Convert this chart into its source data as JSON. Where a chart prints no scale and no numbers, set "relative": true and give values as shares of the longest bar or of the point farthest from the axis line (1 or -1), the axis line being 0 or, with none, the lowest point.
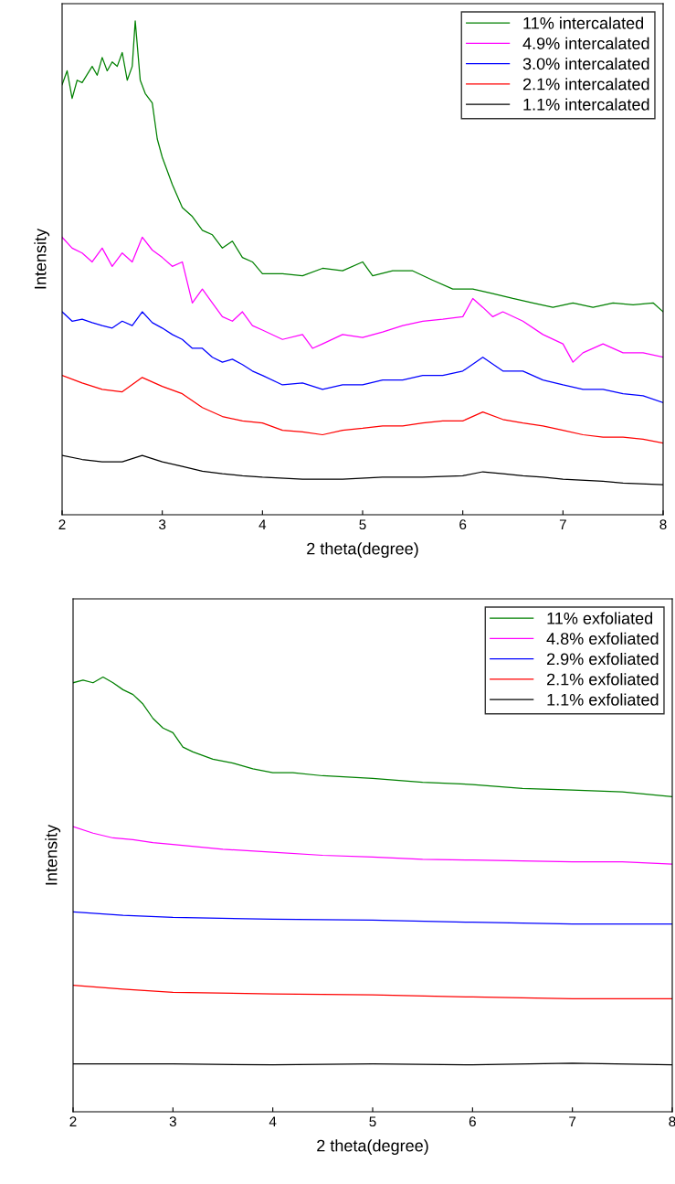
{
  "chart_data": [
    {
      "type": "line",
      "xlabel": "2 theta(degree)",
      "ylabel": "Intensity",
      "relative": true,
      "xlim": [
        2,
        8
      ],
      "xticks": [
        2,
        3,
        4,
        5,
        6,
        7,
        8
      ],
      "legend": "top right",
      "grid": false,
      "tick_labels": "x",
      "series": [
        {
          "name": "11% intercalated",
          "color": "#008000",
          "x": [
            2.0,
            2.05,
            2.1,
            2.15,
            2.2,
            2.3,
            2.35,
            2.4,
            2.45,
            2.5,
            2.55,
            2.6,
            2.65,
            2.7,
            2.73,
            2.78,
            2.83,
            2.9,
            2.95,
            3.0,
            3.1,
            3.2,
            3.3,
            3.4,
            3.5,
            3.6,
            3.7,
            3.8,
            3.9,
            4.0,
            4.2,
            4.4,
            4.6,
            4.8,
            5.0,
            5.1,
            5.3,
            5.5,
            5.7,
            5.9,
            6.1,
            6.3,
            6.5,
            6.7,
            6.9,
            7.1,
            7.3,
            7.5,
            7.7,
            7.9,
            8.0
          ],
          "values": [
            0.871,
            0.899,
            0.843,
            0.88,
            0.875,
            0.908,
            0.89,
            0.926,
            0.899,
            0.917,
            0.908,
            0.936,
            0.88,
            0.908,
            1.0,
            0.88,
            0.853,
            0.834,
            0.761,
            0.724,
            0.669,
            0.622,
            0.604,
            0.576,
            0.567,
            0.54,
            0.554,
            0.521,
            0.512,
            0.488,
            0.488,
            0.484,
            0.499,
            0.494,
            0.512,
            0.484,
            0.494,
            0.494,
            0.475,
            0.457,
            0.457,
            0.448,
            0.438,
            0.429,
            0.42,
            0.429,
            0.42,
            0.429,
            0.425,
            0.429,
            0.411
          ]
        },
        {
          "name": "4.9% intercalated",
          "color": "#ff00ff",
          "x": [
            2.0,
            2.1,
            2.2,
            2.3,
            2.4,
            2.5,
            2.6,
            2.7,
            2.8,
            2.9,
            3.0,
            3.1,
            3.2,
            3.3,
            3.4,
            3.5,
            3.6,
            3.7,
            3.8,
            3.9,
            4.0,
            4.2,
            4.4,
            4.5,
            4.6,
            4.8,
            5.0,
            5.2,
            5.4,
            5.6,
            5.8,
            6.0,
            6.1,
            6.2,
            6.3,
            6.4,
            6.6,
            6.8,
            7.0,
            7.1,
            7.2,
            7.4,
            7.6,
            7.8,
            8.0
          ],
          "values": [
            0.562,
            0.54,
            0.53,
            0.512,
            0.54,
            0.503,
            0.53,
            0.512,
            0.562,
            0.536,
            0.521,
            0.503,
            0.512,
            0.429,
            0.457,
            0.429,
            0.401,
            0.392,
            0.411,
            0.383,
            0.374,
            0.355,
            0.365,
            0.337,
            0.346,
            0.365,
            0.359,
            0.37,
            0.383,
            0.392,
            0.396,
            0.401,
            0.438,
            0.42,
            0.401,
            0.411,
            0.392,
            0.365,
            0.346,
            0.309,
            0.328,
            0.346,
            0.328,
            0.328,
            0.319
          ]
        },
        {
          "name": "3.0% intercalated",
          "color": "#0000ff",
          "x": [
            2.0,
            2.1,
            2.2,
            2.3,
            2.4,
            2.5,
            2.6,
            2.7,
            2.8,
            2.9,
            3.0,
            3.1,
            3.2,
            3.3,
            3.4,
            3.5,
            3.6,
            3.7,
            3.8,
            3.9,
            4.0,
            4.2,
            4.4,
            4.6,
            4.8,
            5.0,
            5.2,
            5.4,
            5.6,
            5.8,
            6.0,
            6.2,
            6.4,
            6.6,
            6.8,
            7.0,
            7.2,
            7.4,
            7.6,
            7.8,
            8.0
          ],
          "values": [
            0.411,
            0.392,
            0.396,
            0.389,
            0.383,
            0.378,
            0.392,
            0.383,
            0.411,
            0.389,
            0.378,
            0.365,
            0.355,
            0.337,
            0.337,
            0.319,
            0.309,
            0.315,
            0.304,
            0.291,
            0.282,
            0.263,
            0.267,
            0.254,
            0.263,
            0.263,
            0.273,
            0.273,
            0.282,
            0.282,
            0.291,
            0.319,
            0.291,
            0.291,
            0.273,
            0.263,
            0.254,
            0.254,
            0.245,
            0.241,
            0.227
          ]
        },
        {
          "name": "2.1% intercalated",
          "color": "#ff0000",
          "x": [
            2.0,
            2.2,
            2.4,
            2.6,
            2.8,
            3.0,
            3.2,
            3.4,
            3.6,
            3.8,
            4.0,
            4.2,
            4.4,
            4.6,
            4.8,
            5.0,
            5.2,
            5.4,
            5.6,
            5.8,
            6.0,
            6.2,
            6.4,
            6.6,
            6.8,
            7.0,
            7.2,
            7.4,
            7.6,
            7.8,
            8.0
          ],
          "values": [
            0.282,
            0.267,
            0.254,
            0.249,
            0.278,
            0.26,
            0.245,
            0.217,
            0.199,
            0.19,
            0.186,
            0.171,
            0.168,
            0.162,
            0.171,
            0.175,
            0.18,
            0.18,
            0.186,
            0.19,
            0.19,
            0.208,
            0.193,
            0.186,
            0.18,
            0.171,
            0.162,
            0.157,
            0.157,
            0.153,
            0.145
          ]
        },
        {
          "name": "1.1% intercalated",
          "color": "#000000",
          "x": [
            2.0,
            2.2,
            2.4,
            2.6,
            2.8,
            3.0,
            3.2,
            3.4,
            3.6,
            3.8,
            4.0,
            4.4,
            4.8,
            5.2,
            5.6,
            6.0,
            6.2,
            6.4,
            6.6,
            6.8,
            7.0,
            7.4,
            7.6,
            8.0
          ],
          "values": [
            0.12,
            0.112,
            0.107,
            0.107,
            0.12,
            0.107,
            0.098,
            0.088,
            0.083,
            0.079,
            0.076,
            0.072,
            0.072,
            0.076,
            0.076,
            0.079,
            0.087,
            0.083,
            0.079,
            0.076,
            0.072,
            0.068,
            0.064,
            0.061
          ]
        }
      ]
    },
    {
      "type": "line",
      "xlabel": "2 theta(degree)",
      "ylabel": "Intensity",
      "relative": true,
      "xlim": [
        2,
        8
      ],
      "xticks": [
        2,
        3,
        4,
        5,
        6,
        7,
        8
      ],
      "legend": "top right",
      "grid": false,
      "tick_labels": "x",
      "series": [
        {
          "name": "11% exfoliated",
          "color": "#008000",
          "x": [
            2.0,
            2.1,
            2.2,
            2.3,
            2.4,
            2.5,
            2.6,
            2.7,
            2.8,
            2.9,
            3.0,
            3.1,
            3.2,
            3.4,
            3.6,
            3.8,
            4.0,
            4.2,
            4.5,
            5.0,
            5.5,
            6.0,
            6.5,
            7.0,
            7.5,
            8.0
          ],
          "values": [
            0.987,
            0.993,
            0.987,
            1.0,
            0.987,
            0.971,
            0.96,
            0.938,
            0.905,
            0.883,
            0.872,
            0.839,
            0.828,
            0.811,
            0.802,
            0.789,
            0.78,
            0.78,
            0.773,
            0.767,
            0.758,
            0.753,
            0.744,
            0.74,
            0.736,
            0.725
          ]
        },
        {
          "name": "4.8% exfoliated",
          "color": "#ff00ff",
          "x": [
            2.0,
            2.2,
            2.4,
            2.6,
            2.8,
            3.0,
            3.5,
            4.0,
            4.5,
            5.0,
            5.5,
            6.0,
            6.5,
            7.0,
            7.5,
            8.0
          ],
          "values": [
            0.656,
            0.641,
            0.63,
            0.626,
            0.619,
            0.615,
            0.604,
            0.597,
            0.59,
            0.586,
            0.581,
            0.579,
            0.577,
            0.575,
            0.575,
            0.57
          ]
        },
        {
          "name": "2.9% exfoliated",
          "color": "#0000ff",
          "x": [
            2.0,
            2.5,
            3.0,
            4.0,
            5.0,
            6.0,
            7.0,
            8.0
          ],
          "values": [
            0.46,
            0.452,
            0.447,
            0.443,
            0.441,
            0.436,
            0.432,
            0.432
          ]
        },
        {
          "name": "2.1% exfoliated",
          "color": "#ff0000",
          "x": [
            2.0,
            2.5,
            3.0,
            4.0,
            5.0,
            6.0,
            7.0,
            8.0
          ],
          "values": [
            0.291,
            0.282,
            0.275,
            0.271,
            0.269,
            0.264,
            0.26,
            0.26
          ]
        },
        {
          "name": "1.1% exfoliated",
          "color": "#000000",
          "x": [
            2.0,
            3.0,
            4.0,
            5.0,
            6.0,
            7.0,
            8.0
          ],
          "values": [
            0.11,
            0.11,
            0.108,
            0.11,
            0.108,
            0.112,
            0.108
          ]
        }
      ]
    }
  ]
}
